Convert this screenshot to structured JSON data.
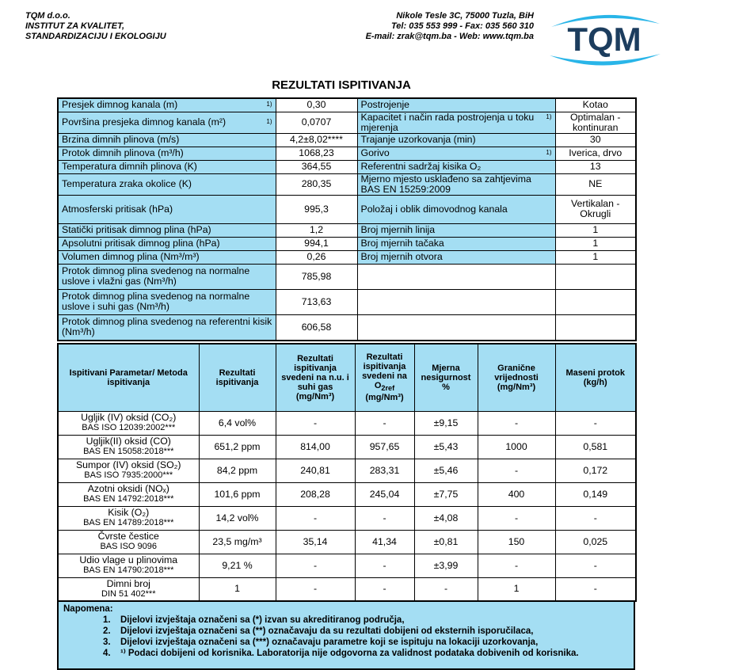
{
  "header": {
    "company": [
      "TQM d.o.o.",
      "INSTITUT ZA KVALITET,",
      "STANDARDIZACIJU I EKOLOGIJU"
    ],
    "address": [
      "Nikole Tesle 3C, 75000 Tuzla, BiH",
      "Tel: 035 553 999  -  Fax: 035 560 310",
      "E-mail: zrak@tqm.ba  -  Web: www.tqm.ba"
    ],
    "logo": "TQM"
  },
  "title": "REZULTATI ISPITIVANJA",
  "info_table": {
    "rows": [
      {
        "label": "Presjek dimnog kanala (m)",
        "note": "1)",
        "value": "0,30",
        "label2": "Postrojenje",
        "value2": "Kotao"
      },
      {
        "label": "Površina presjeka dimnog kanala (m²)",
        "note": "1)",
        "value": "0,0707",
        "label2": "Kapacitet i način rada postrojenja u toku mjerenja",
        "note2": "1)",
        "value2": "Optimalan - kontinuran"
      },
      {
        "label": "Brzina dimnih plinova (m/s)",
        "value": "4,2±8,02****",
        "label2": "Trajanje uzorkovanja (min)",
        "value2": "30"
      },
      {
        "label": "Protok dimnih plinova (m³/h)",
        "value": "1068,23",
        "label2": "Gorivo",
        "note2": "1)",
        "value2": "Iverica, drvo"
      },
      {
        "label": "Temperatura dimnih plinova (K)",
        "value": "364,55",
        "label2": "Referentni sadržaj kisika O₂",
        "value2": "13"
      },
      {
        "label": "Temperatura zraka okolice (K)",
        "value": "280,35",
        "label2": "Mjerno mjesto usklađeno sa zahtjevima BAS EN 15259:2009",
        "value2": "NE"
      },
      {
        "label": "Atmosferski pritisak (hPa)",
        "value": "995,3",
        "label2": "Položaj i oblik dimovodnog kanala",
        "value2": "Vertikalan - Okrugli"
      },
      {
        "label": "Statički pritisak dimnog plina (hPa)",
        "value": "1,2",
        "label2": "Broj mjernih linija",
        "value2": "1"
      },
      {
        "label": "Apsolutni pritisak dimnog plina (hPa)",
        "value": "994,1",
        "label2": "Broj mjernih tačaka",
        "value2": "1"
      },
      {
        "label": "Volumen dimnog plina (Nm³/m³)",
        "value": "0,26",
        "label2": "Broj mjernih otvora",
        "value2": "1"
      },
      {
        "label": "Protok dimnog plina svedenog na normalne uslove i vlažni gas (Nm³/h)",
        "value": "785,98"
      },
      {
        "label": "Protok dimnog plina svedenog na normalne uslove i suhi gas (Nm³/h)",
        "value": "713,63"
      },
      {
        "label": "Protok dimnog plina svedenog na referentni kisik (Nm³/h)",
        "value": "606,58"
      }
    ]
  },
  "results_table": {
    "columns": [
      "Ispitivani Parametar/ Metoda ispitivanja",
      "Rezultati ispitivanja",
      "Rezultati ispitivanja svedeni na n.u. i suhi gas (mg/Nm³)",
      {
        "text": "Rezultati ispitivanja svedeni na O",
        "sub": "2ref",
        "after": " (mg/Nm³)"
      },
      "Mjerna nesigurnost %",
      "Granične vrijednosti (mg/Nm³)",
      "Maseni protok (kg/h)"
    ],
    "rows": [
      {
        "parameter": "Ugljik (IV) oksid (CO₂)",
        "method": "BAS ISO 12039:2002***",
        "result": "6,4 vol%",
        "nu": "-",
        "o2ref": "-",
        "uncertainty": "±9,15",
        "limit": "-",
        "mass": "-"
      },
      {
        "parameter": "Ugljik(II) oksid (CO)",
        "method": "BAS EN 15058:2018***",
        "result": "651,2 ppm",
        "nu": "814,00",
        "o2ref": "957,65",
        "uncertainty": "±5,43",
        "limit": "1000",
        "mass": "0,581"
      },
      {
        "parameter": "Sumpor (IV) oksid (SO₂)",
        "method": "BAS ISO 7935:2000***",
        "result": "84,2 ppm",
        "nu": "240,81",
        "o2ref": "283,31",
        "uncertainty": "±5,46",
        "limit": "-",
        "mass": "0,172"
      },
      {
        "parameter": "Azotni oksidi (NOₓ)",
        "method": "BAS EN 14792:2018***",
        "result": "101,6 ppm",
        "nu": "208,28",
        "o2ref": "245,04",
        "uncertainty": "±7,75",
        "limit": "400",
        "mass": "0,149"
      },
      {
        "parameter": "Kisik (O₂)",
        "method": "BAS EN 14789:2018***",
        "result": "14,2 vol%",
        "nu": "-",
        "o2ref": "-",
        "uncertainty": "±4,08",
        "limit": "-",
        "mass": "-"
      },
      {
        "parameter": "Čvrste čestice",
        "method": "BAS ISO 9096",
        "result": "23,5 mg/m³",
        "nu": "35,14",
        "o2ref": "41,34",
        "uncertainty": "±0,81",
        "limit": "150",
        "mass": "0,025"
      },
      {
        "parameter": "Udio vlage u plinovima",
        "method": "BAS EN 14790:2018***",
        "result": "9,21 %",
        "nu": "-",
        "o2ref": "-",
        "uncertainty": "±3,99",
        "limit": "-",
        "mass": "-"
      },
      {
        "parameter": "Dimni broj",
        "method": "DIN 51 402***",
        "result": "1",
        "nu": "-",
        "o2ref": "-",
        "uncertainty": "-",
        "limit": "1",
        "mass": "-"
      }
    ]
  },
  "notes": {
    "heading": "Napomena:",
    "items": [
      {
        "number": "1.",
        "text": "Dijelovi izvještaja označeni sa (*) izvan su akreditiranog područja,"
      },
      {
        "number": "2.",
        "text": "Dijelovi izvještaja označeni sa (**) označavaju da su rezultati dobijeni od eksternih isporučilaca,"
      },
      {
        "number": "3.",
        "text": "Dijelovi izvještaja označeni sa (***) označavaju parametre koji se ispituju na lokaciji uzorkovanja,"
      },
      {
        "number": "4.",
        "text": "¹⁾ Podaci dobijeni od korisnika. Laboratorija nije odgovorna za validnost podataka dobivenih od korisnika."
      }
    ]
  }
}
